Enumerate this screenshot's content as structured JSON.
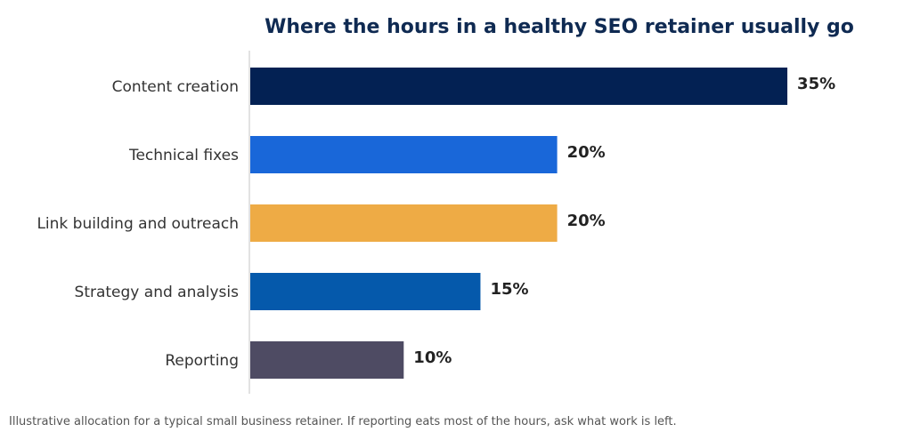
{
  "chart_data": {
    "type": "bar",
    "orientation": "horizontal",
    "title": "Where the hours in a healthy SEO retainer usually go",
    "categories": [
      "Content creation",
      "Technical fixes",
      "Link building and outreach",
      "Strategy and analysis",
      "Reporting"
    ],
    "values": [
      35,
      20,
      20,
      15,
      10
    ],
    "value_labels": [
      "35%",
      "20%",
      "20%",
      "15%",
      "10%"
    ],
    "unit": "%",
    "colors": [
      "#032153",
      "#1967d9",
      "#eeab45",
      "#0559ab",
      "#4e4b63"
    ],
    "xlim": [
      0,
      40
    ],
    "grid": false,
    "legend": "none",
    "xlabel": "",
    "ylabel": ""
  },
  "footnote": "Illustrative allocation for a typical small business retainer. If reporting eats most of the hours, ask what work is left."
}
